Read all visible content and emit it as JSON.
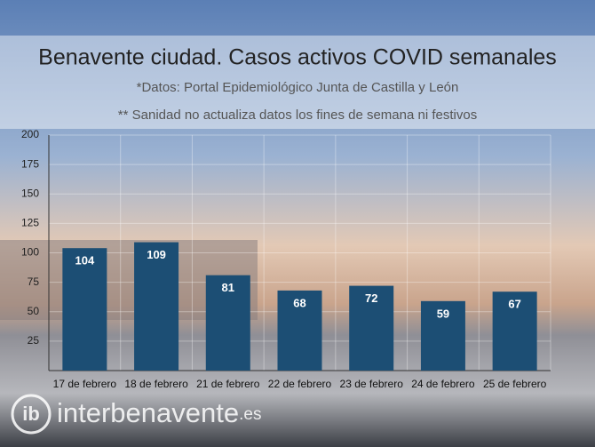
{
  "chart_data": {
    "type": "bar",
    "title": "Benavente ciudad. Casos activos COVID semanales",
    "subtitle": "*Datos: Portal Epidemiológico Junta de Castilla y León",
    "note": "** Sanidad no actualiza datos los fines de semana ni festivos",
    "categories": [
      "17 de febrero",
      "18 de febrero",
      "21 de febrero",
      "22 de febrero",
      "23 de febrero",
      "24 de febrero",
      "25 de febrero"
    ],
    "values": [
      104,
      109,
      81,
      68,
      72,
      59,
      67
    ],
    "color": "#1c4e74",
    "ylim": [
      0,
      200
    ],
    "yticks": [
      25,
      50,
      75,
      100,
      125,
      150,
      175,
      200
    ],
    "grid": true
  },
  "watermark": {
    "logo": "ib",
    "text": "interbenavente",
    "suffix": ".es"
  }
}
